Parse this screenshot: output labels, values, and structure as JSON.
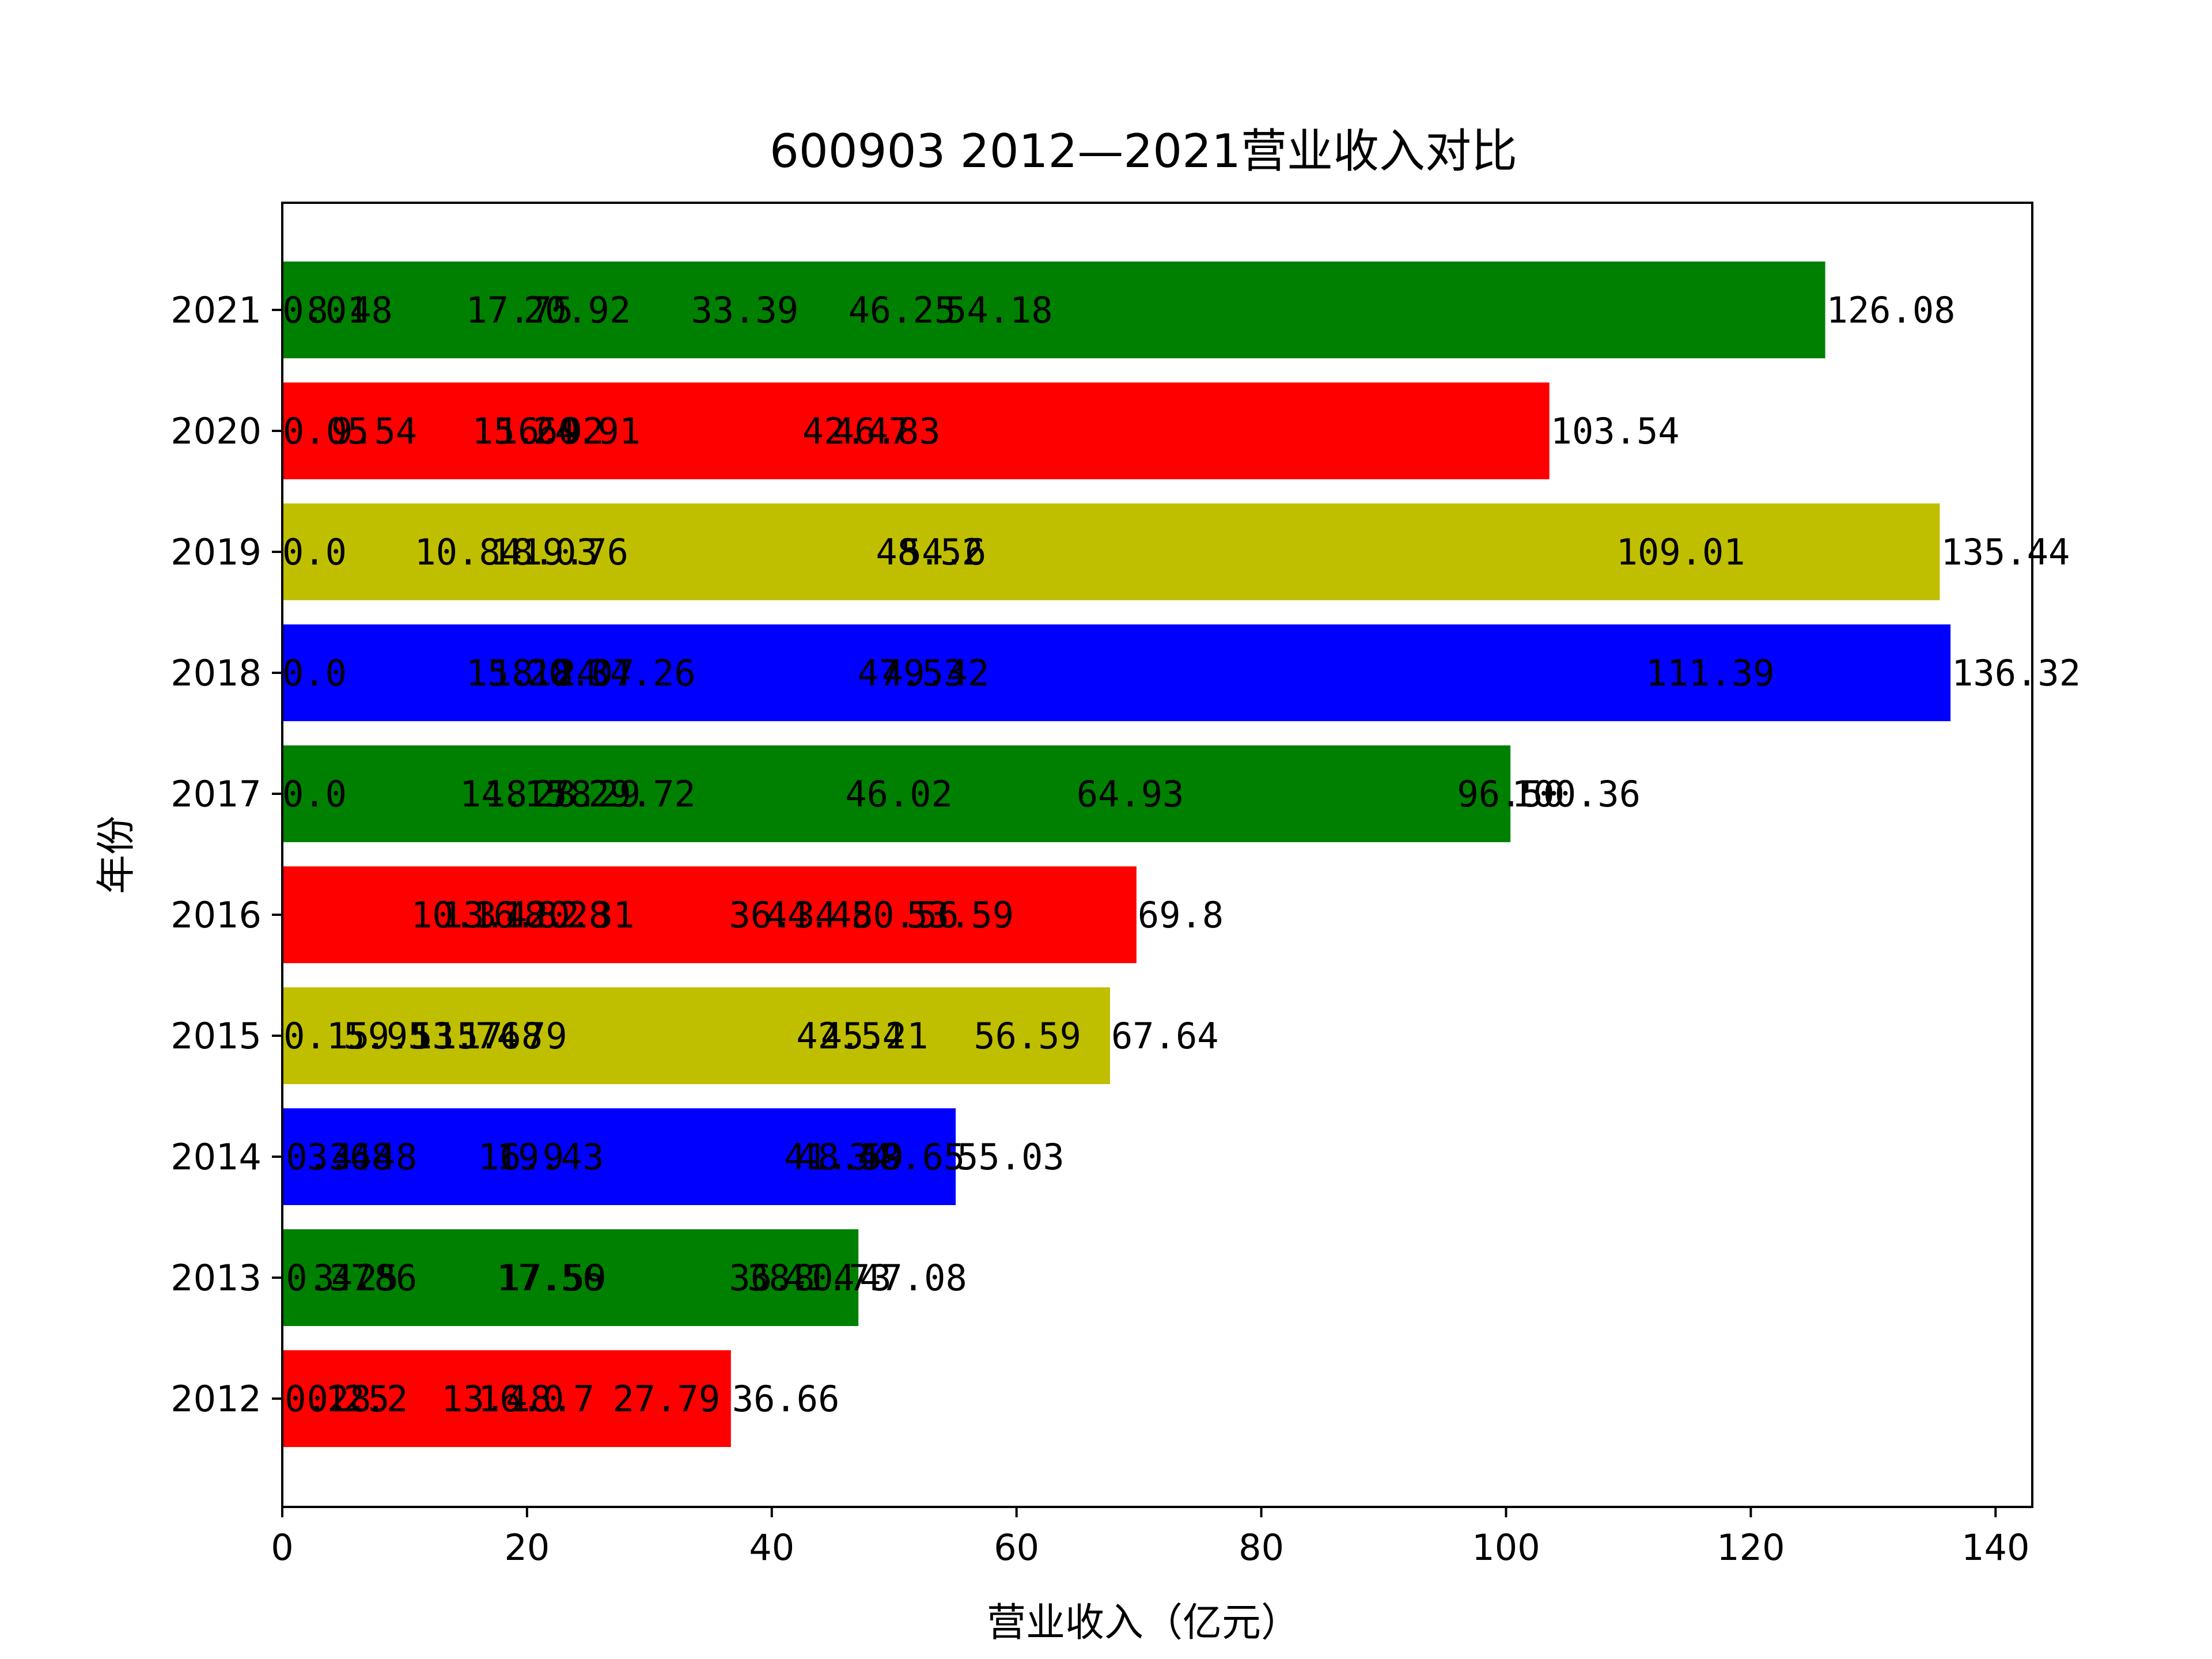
{
  "chart_data": {
    "type": "bar",
    "orientation": "horizontal",
    "title": "600903 2012—2021营业收入对比",
    "xlabel": "营业收入（亿元）",
    "ylabel": "年份",
    "xlim": [
      0,
      143
    ],
    "xticks": [
      "0",
      "20",
      "40",
      "60",
      "80",
      "100",
      "120",
      "140"
    ],
    "grid": false,
    "legend": "none",
    "categories": [
      "2012",
      "2013",
      "2014",
      "2015",
      "2016",
      "2017",
      "2018",
      "2019",
      "2020",
      "2021"
    ],
    "values": [
      36.66,
      47.08,
      55.03,
      67.64,
      69.8,
      100.36,
      136.32,
      135.44,
      103.54,
      126.08
    ],
    "value_labels": [
      "36.66",
      "47.08",
      "55.03",
      "67.64",
      "69.8",
      "100.36",
      "136.32",
      "135.44",
      "103.54",
      "126.08"
    ],
    "bar_colors": [
      "#ff0000",
      "#008000",
      "#0000ff",
      "#bfbf00",
      "#ff0000",
      "#008000",
      "#0000ff",
      "#bfbf00",
      "#ff0000",
      "#008000"
    ],
    "annotations": [
      {
        "year": "2012",
        "labels": [
          {
            "x": 0.2,
            "text": "0.2"
          },
          {
            "x": 2.0,
            "text": "0.8"
          },
          {
            "x": 3.5,
            "text": "1.5"
          },
          {
            "x": 5.0,
            "text": "2.2"
          },
          {
            "x": 13.0,
            "text": "13.4"
          },
          {
            "x": 16.0,
            "text": "16.0"
          },
          {
            "x": 18.5,
            "text": "18.7"
          },
          {
            "x": 27.0,
            "text": "27.79"
          }
        ]
      },
      {
        "year": "2013",
        "labels": [
          {
            "x": 0.3,
            "text": "0.37"
          },
          {
            "x": 2.5,
            "text": "3.25"
          },
          {
            "x": 4.0,
            "text": "4.86"
          },
          {
            "x": 17.5,
            "text": "17.56"
          },
          {
            "x": 17.7,
            "text": "17.59"
          },
          {
            "x": 36.5,
            "text": "36.8"
          },
          {
            "x": 38.0,
            "text": "38.04"
          },
          {
            "x": 41.0,
            "text": "41.73"
          }
        ]
      },
      {
        "year": "2014",
        "labels": [
          {
            "x": 0.3,
            "text": "0.34"
          },
          {
            "x": 2.0,
            "text": "3.68"
          },
          {
            "x": 4.0,
            "text": "4.48"
          },
          {
            "x": 16.0,
            "text": "16.9"
          },
          {
            "x": 17.5,
            "text": "19.43"
          },
          {
            "x": 41.0,
            "text": "41.34"
          },
          {
            "x": 42.0,
            "text": "48.59"
          },
          {
            "x": 47.0,
            "text": "48.65"
          }
        ]
      },
      {
        "year": "2015",
        "labels": [
          {
            "x": 0.1,
            "text": "0.15"
          },
          {
            "x": 5.0,
            "text": "5.95"
          },
          {
            "x": 7.0,
            "text": "9.53"
          },
          {
            "x": 10.5,
            "text": "13.74"
          },
          {
            "x": 12.5,
            "text": "15.68"
          },
          {
            "x": 14.5,
            "text": "17.79"
          },
          {
            "x": 42.0,
            "text": "42.54"
          },
          {
            "x": 44.0,
            "text": "45.21"
          },
          {
            "x": 56.5,
            "text": "56.59"
          }
        ]
      },
      {
        "year": "2016",
        "labels": [
          {
            "x": 10.5,
            "text": "10.3"
          },
          {
            "x": 13.0,
            "text": "13.4"
          },
          {
            "x": 15.5,
            "text": "16.82"
          },
          {
            "x": 18.0,
            "text": "18.28"
          },
          {
            "x": 20.0,
            "text": "20.31"
          },
          {
            "x": 36.5,
            "text": "36.34"
          },
          {
            "x": 39.5,
            "text": "44.48"
          },
          {
            "x": 46.5,
            "text": "50.56"
          },
          {
            "x": 51.0,
            "text": "53.59"
          }
        ]
      },
      {
        "year": "2017",
        "labels": [
          {
            "x": 0.0,
            "text": "0.0"
          },
          {
            "x": 14.5,
            "text": "14.15"
          },
          {
            "x": 16.5,
            "text": "18.78"
          },
          {
            "x": 20.5,
            "text": "28.29"
          },
          {
            "x": 25.0,
            "text": "29.72"
          },
          {
            "x": 46.0,
            "text": "46.02"
          },
          {
            "x": 64.9,
            "text": "64.93"
          },
          {
            "x": 96.0,
            "text": "96.50"
          }
        ]
      },
      {
        "year": "2018",
        "labels": [
          {
            "x": 0.0,
            "text": "0.0"
          },
          {
            "x": 15.0,
            "text": "15.18"
          },
          {
            "x": 17.0,
            "text": "18.24"
          },
          {
            "x": 20.0,
            "text": "20.07"
          },
          {
            "x": 25.0,
            "text": "34.26"
          },
          {
            "x": 47.0,
            "text": "47.53"
          },
          {
            "x": 49.0,
            "text": "49.42"
          },
          {
            "x": 111.4,
            "text": "111.39"
          }
        ]
      },
      {
        "year": "2019",
        "labels": [
          {
            "x": 0.0,
            "text": "0.0"
          },
          {
            "x": 10.8,
            "text": "10.84"
          },
          {
            "x": 17.0,
            "text": "18.03"
          },
          {
            "x": 19.5,
            "text": "19.76"
          },
          {
            "x": 48.5,
            "text": "48.52"
          },
          {
            "x": 50.5,
            "text": "54.6"
          },
          {
            "x": 109.0,
            "text": "109.01"
          }
        ]
      },
      {
        "year": "2020",
        "labels": [
          {
            "x": 0.05,
            "text": "0.05"
          },
          {
            "x": 4.0,
            "text": "9.54"
          },
          {
            "x": 15.5,
            "text": "15.60"
          },
          {
            "x": 17.5,
            "text": "16.92"
          },
          {
            "x": 20.5,
            "text": "24.91"
          },
          {
            "x": 42.5,
            "text": "42.47"
          },
          {
            "x": 45.0,
            "text": "46.83"
          }
        ]
      },
      {
        "year": "2021",
        "labels": [
          {
            "x": 0.01,
            "text": "0.01"
          },
          {
            "x": 2.0,
            "text": "8.48"
          },
          {
            "x": 15.0,
            "text": "17.75"
          },
          {
            "x": 19.7,
            "text": "20.92"
          },
          {
            "x": 33.4,
            "text": "33.39"
          },
          {
            "x": 46.25,
            "text": "46.25"
          },
          {
            "x": 54.18,
            "text": "54.18"
          }
        ]
      }
    ]
  }
}
